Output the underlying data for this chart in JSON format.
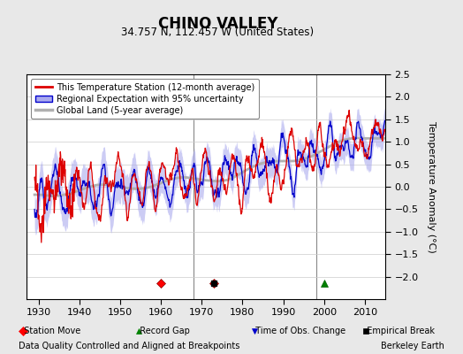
{
  "title": "CHINO VALLEY",
  "subtitle": "34.757 N, 112.457 W (United States)",
  "ylabel": "Temperature Anomaly (°C)",
  "xlim": [
    1927,
    2015
  ],
  "ylim": [
    -2.5,
    2.5
  ],
  "yticks": [
    -2,
    -1.5,
    -1,
    -0.5,
    0,
    0.5,
    1,
    1.5,
    2,
    2.5
  ],
  "xticks": [
    1930,
    1940,
    1950,
    1960,
    1970,
    1980,
    1990,
    2000,
    2010
  ],
  "footer_left": "Data Quality Controlled and Aligned at Breakpoints",
  "footer_right": "Berkeley Earth",
  "station_moves": [
    1960,
    1973
  ],
  "record_gaps": [
    2000
  ],
  "time_obs_changes": [],
  "empirical_breaks": [
    1973
  ],
  "vertical_lines": [
    1968,
    1998
  ],
  "bg_color": "#e8e8e8",
  "plot_bg_color": "#ffffff",
  "station_color": "#dd0000",
  "regional_color": "#0000cc",
  "regional_fill_color": "#aaaaee",
  "global_color": "#b0b0b0",
  "seed": 123
}
